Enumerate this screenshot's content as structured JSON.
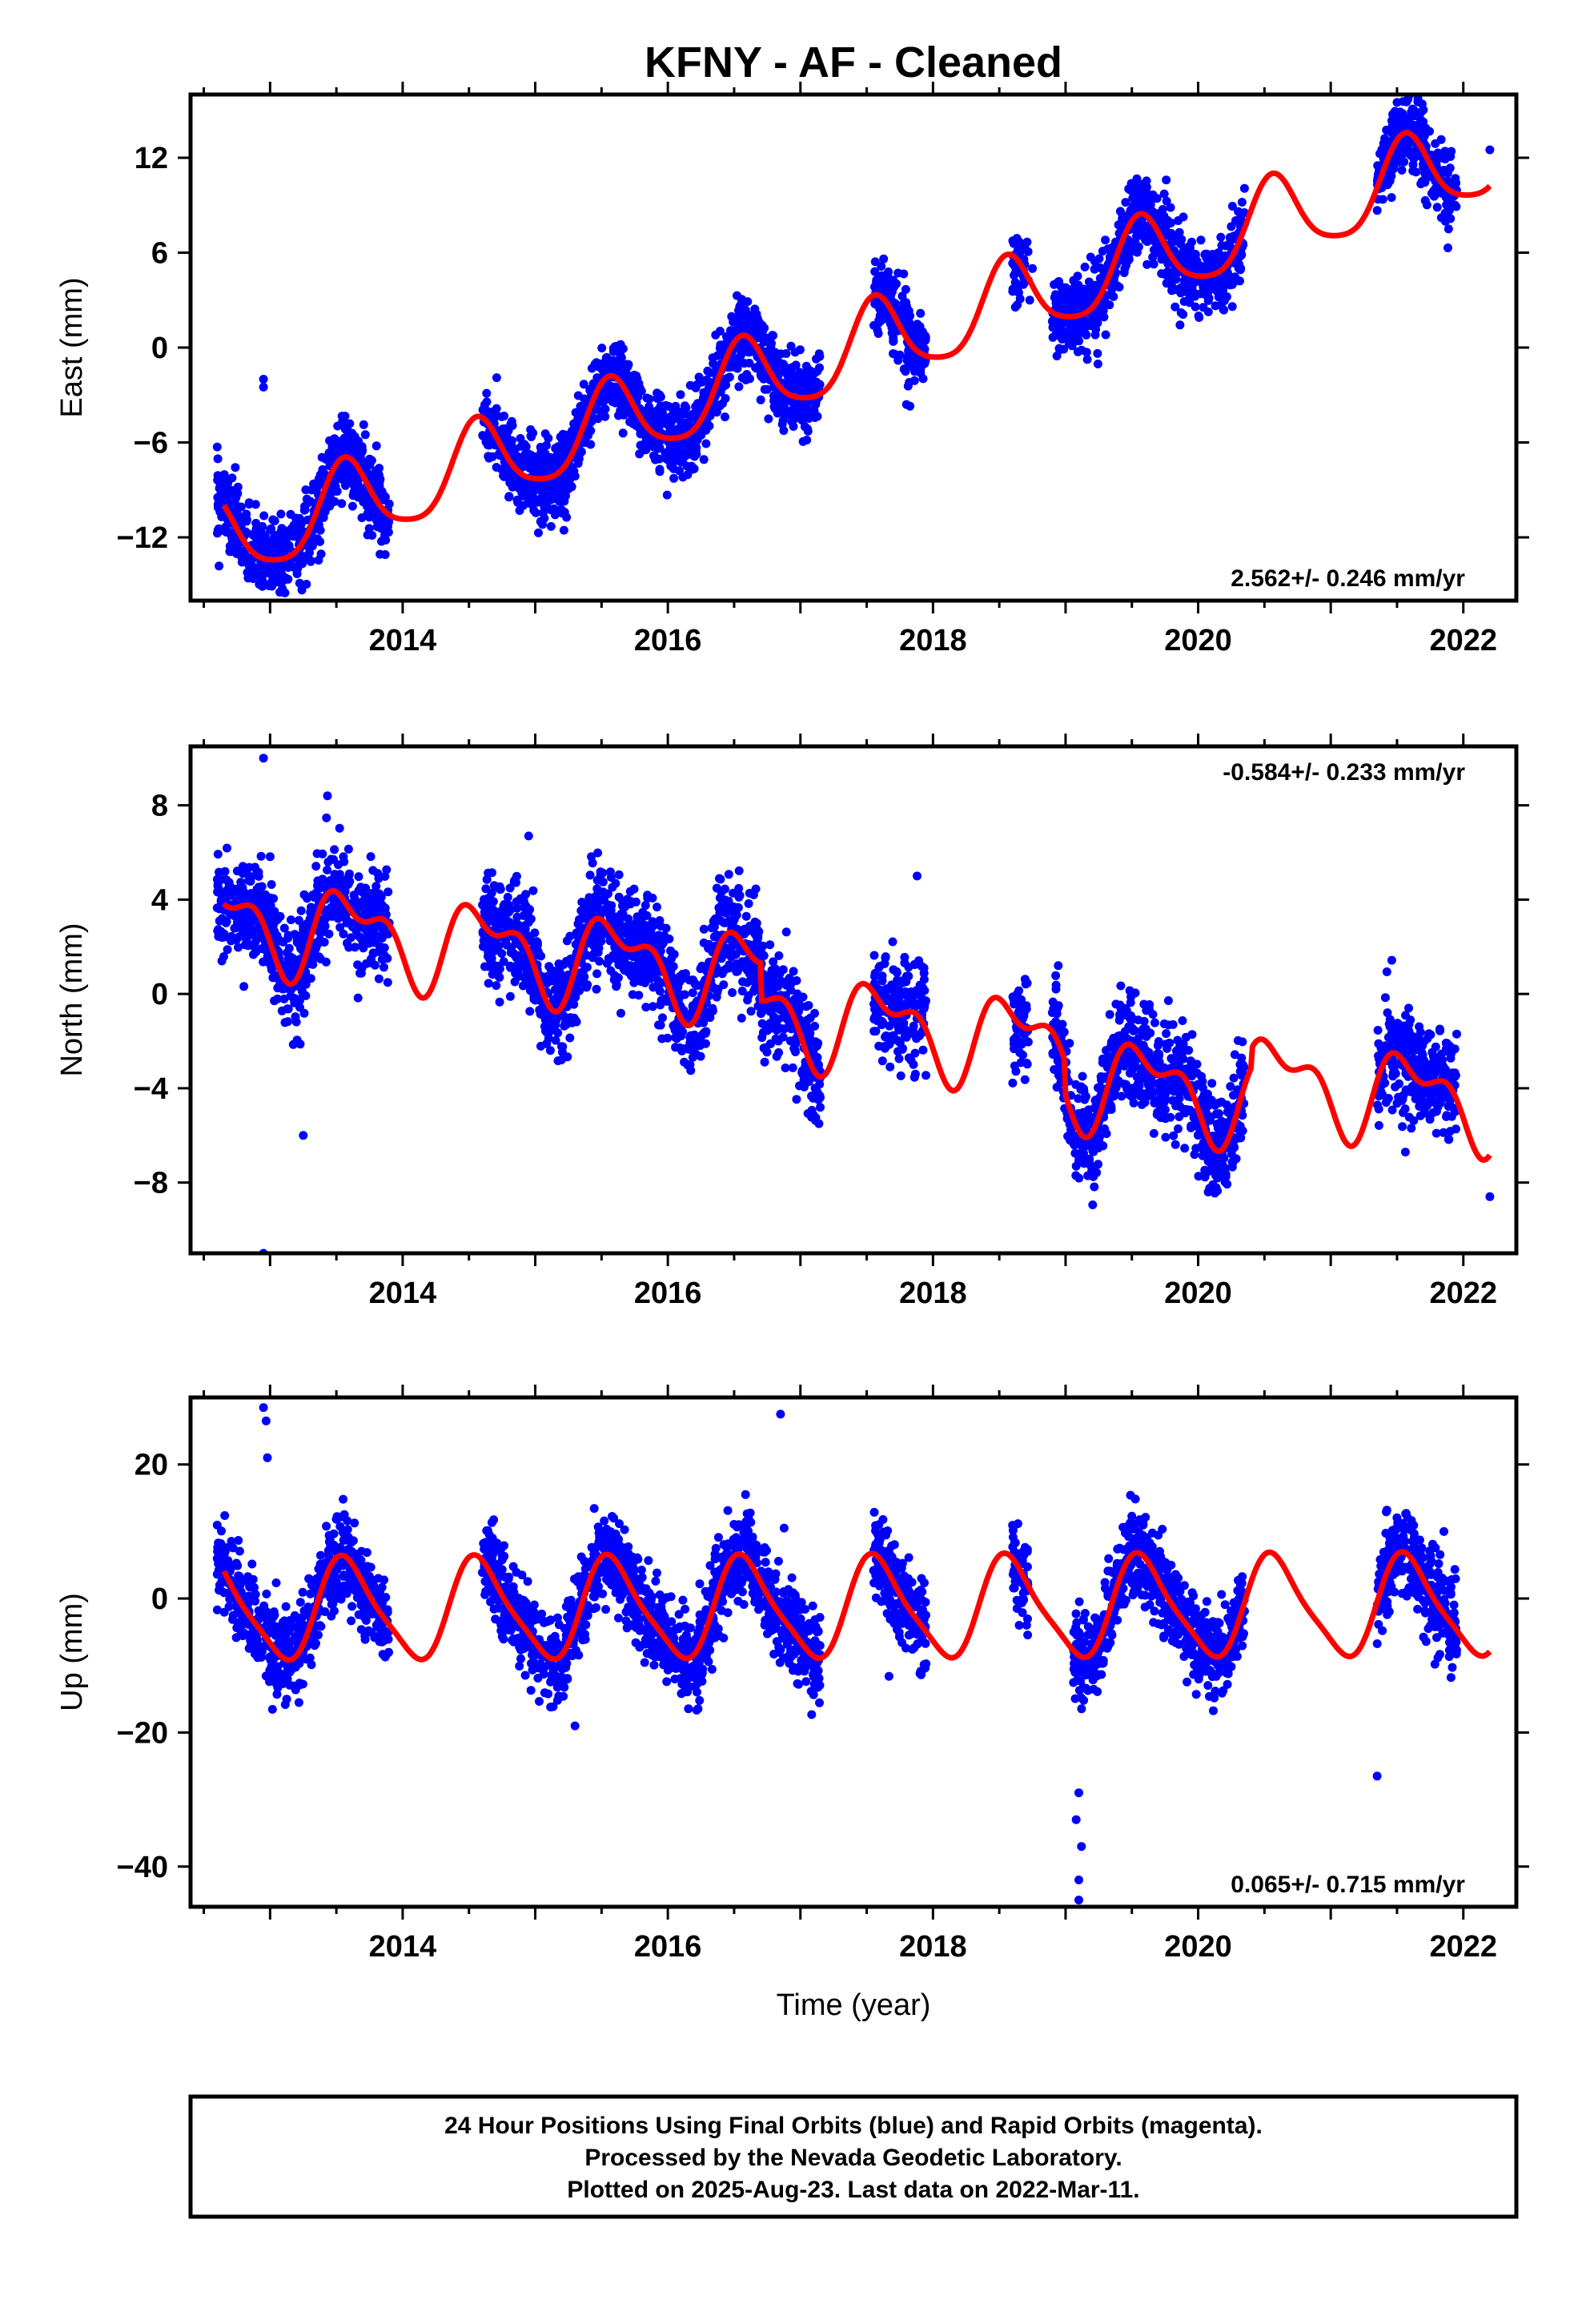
{
  "title": "KFNY  - AF - Cleaned",
  "xlabel": "Time (year)",
  "footer": {
    "line1": "24 Hour Positions Using Final Orbits (blue) and Rapid Orbits (magenta).",
    "line2": "Processed by the Nevada Geodetic Laboratory.",
    "line3": "Plotted on 2025-Aug-23. Last data on 2022-Mar-11."
  },
  "colors": {
    "data": "#0000ff",
    "model": "#ff0000",
    "axes": "#000000"
  },
  "chart_data": [
    {
      "type": "scatter",
      "title": "East",
      "ylabel": "East (mm)",
      "xlim": [
        2012.4,
        2022.4
      ],
      "ylim": [
        -16,
        16
      ],
      "xticks": [
        2014,
        2016,
        2018,
        2020,
        2022
      ],
      "yticks": [
        -12,
        -6,
        0,
        6,
        12
      ],
      "rate_label": "2.562+/- 0.246 mm/yr",
      "rate_position": "bottom-right",
      "model": {
        "rate": 2.562,
        "intercept_at_2017": -1.2,
        "annual_amp": 2.6,
        "annual_phase": 4.3,
        "semiannual_amp": 0.5,
        "semiannual_phase": 1.0
      },
      "series": [
        {
          "name": "final-orbits",
          "segments": [
            [
              2012.6,
              2013.9
            ],
            [
              2014.6,
              2015.2
            ],
            [
              2015.15,
              2017.15
            ],
            [
              2017.55,
              2017.95
            ],
            [
              2018.6,
              2018.72
            ],
            [
              2018.9,
              2020.35
            ],
            [
              2021.35,
              2021.95
            ]
          ],
          "noise": 1.2,
          "outliers": [
            [
              2012.95,
              -2.0
            ],
            [
              2012.95,
              -2.5
            ],
            [
              2017.8,
              -3.6
            ],
            [
              2018.75,
              5.0
            ],
            [
              2018.73,
              3.0
            ],
            [
              2022.2,
              12.5
            ],
            [
              2021.5,
              15.5
            ]
          ]
        }
      ]
    },
    {
      "type": "scatter",
      "title": "North",
      "ylabel": "North (mm)",
      "xlim": [
        2012.4,
        2022.4
      ],
      "ylim": [
        -11,
        10.5
      ],
      "xticks": [
        2014,
        2016,
        2018,
        2020,
        2022
      ],
      "yticks": [
        -8,
        -4,
        0,
        4,
        8
      ],
      "rate_label": "-0.584+/- 0.233 mm/yr",
      "rate_position": "top-right",
      "model": {
        "rate": -0.584,
        "intercept_at_2017": 0.6,
        "annual_amp": 1.6,
        "annual_phase": 4.0,
        "semiannual_amp": 0.9,
        "semiannual_phase": 2.6,
        "offsets": [
          [
            2016.7,
            -1.6
          ],
          [
            2019.0,
            -1.4
          ],
          [
            2020.4,
            0.8
          ]
        ]
      },
      "series": [
        {
          "name": "final-orbits",
          "segments": [
            [
              2012.6,
              2013.9
            ],
            [
              2014.6,
              2017.15
            ],
            [
              2017.55,
              2017.95
            ],
            [
              2018.6,
              2018.72
            ],
            [
              2018.9,
              2020.35
            ],
            [
              2021.35,
              2021.95
            ]
          ],
          "noise": 1.1,
          "outliers": [
            [
              2012.95,
              10.0
            ],
            [
              2012.95,
              -11.0
            ],
            [
              2014.95,
              6.7
            ],
            [
              2013.25,
              -6.0
            ],
            [
              2022.2,
              -8.6
            ],
            [
              2021.95,
              -1.7
            ],
            [
              2017.88,
              5.0
            ]
          ]
        }
      ]
    },
    {
      "type": "scatter",
      "title": "Up",
      "ylabel": "Up (mm)",
      "xlim": [
        2012.4,
        2022.4
      ],
      "ylim": [
        -46,
        30
      ],
      "xticks": [
        2014,
        2016,
        2018,
        2020,
        2022
      ],
      "yticks": [
        -40,
        -20,
        0,
        20
      ],
      "rate_label": "0.065+/- 0.715 mm/yr",
      "rate_position": "bottom-right",
      "model": {
        "rate": 0.065,
        "intercept_at_2017": -1.5,
        "annual_amp": 7.3,
        "annual_phase": 4.2,
        "semiannual_amp": 1.5,
        "semiannual_phase": 1.8
      },
      "series": [
        {
          "name": "final-orbits",
          "segments": [
            [
              2012.6,
              2013.9
            ],
            [
              2014.6,
              2017.15
            ],
            [
              2017.55,
              2017.95
            ],
            [
              2018.6,
              2018.72
            ],
            [
              2019.05,
              2020.35
            ],
            [
              2021.35,
              2021.95
            ]
          ],
          "noise": 3.2,
          "outliers": [
            [
              2012.95,
              28.5
            ],
            [
              2012.97,
              26.5
            ],
            [
              2012.98,
              21.0
            ],
            [
              2016.85,
              27.5
            ],
            [
              2019.1,
              -45.0
            ],
            [
              2019.1,
              -42.0
            ],
            [
              2019.12,
              -37.0
            ],
            [
              2019.08,
              -33.0
            ],
            [
              2019.1,
              -29.0
            ],
            [
              2021.35,
              -26.5
            ],
            [
              2015.3,
              -19.0
            ],
            [
              2018.65,
              -4.0
            ]
          ]
        }
      ]
    }
  ]
}
